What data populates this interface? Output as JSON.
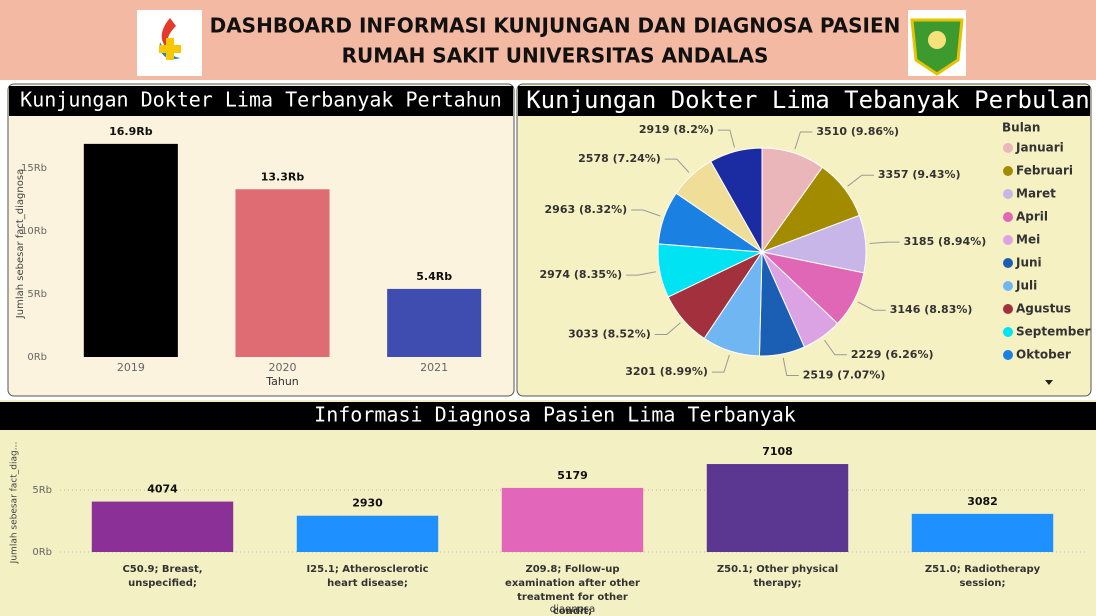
{
  "header": {
    "title_line1": "DASHBOARD INFORMASI KUNJUNGAN DAN DIAGNOSA PASIEN",
    "title_line2": "RUMAH SAKIT UNIVERSITAS ANDALAS"
  },
  "chart_data": [
    {
      "type": "bar",
      "title": "Kunjungan Dokter Lima Terbanyak Pertahun",
      "categories": [
        "2019",
        "2020",
        "2021"
      ],
      "values": [
        16900,
        13300,
        5400
      ],
      "value_labels": [
        "16.9Rb",
        "13.3Rb",
        "5.4Rb"
      ],
      "colors": [
        "#000000",
        "#df6b73",
        "#3f4db1"
      ],
      "ylim": [
        0,
        18000
      ],
      "yticks": [
        {
          "value": 0,
          "label": "0Rb"
        },
        {
          "value": 5000,
          "label": "5Rb"
        },
        {
          "value": 10000,
          "label": "10Rb"
        },
        {
          "value": 15000,
          "label": "15Rb"
        }
      ],
      "xlabel": "Tahun",
      "ylabel": "Jumlah sebesar fact_diagnosa",
      "grid": false
    },
    {
      "type": "pie",
      "title": "Kunjungan Dokter Lima Tebanyak Perbulan",
      "legend_title": "Bulan",
      "categories": [
        "Januari",
        "Februari",
        "Maret",
        "April",
        "Mei",
        "Juni",
        "Juli",
        "Agustus",
        "September",
        "Oktober",
        null,
        null
      ],
      "values": [
        3510,
        3357,
        3185,
        3146,
        2229,
        2519,
        3201,
        3033,
        2974,
        2963,
        2578,
        2919
      ],
      "value_labels": [
        "3510 (9.86%)",
        "3357 (9.43%)",
        "3185 (8.94%)",
        "3146 (8.83%)",
        "2229 (6.26%)",
        "2519 (7.07%)",
        "3201 (8.99%)",
        "3033 (8.52%)",
        "2974 (8.35%)",
        "2963 (8.32%)",
        "2578 (7.24%)",
        "2919 (8.2%)"
      ],
      "colors": [
        "#ebb6ba",
        "#a38b00",
        "#c9b6e8",
        "#e066b6",
        "#dba3e3",
        "#1b5fb5",
        "#6fb6f2",
        "#a2303d",
        "#00e3f2",
        "#1a80e2",
        "#f0dd98",
        "#1b2ca3"
      ],
      "legend": "right"
    },
    {
      "type": "bar",
      "title": "Informasi Diagnosa Pasien Lima Terbanyak",
      "categories": [
        "C50.9; Breast, unspecified;",
        "I25.1; Atherosclerotic heart disease;",
        "Z09.8; Follow-up examination after other treatment for other condit;",
        "Z50.1; Other physical therapy;",
        "Z51.0; Radiotherapy session;"
      ],
      "values": [
        4074,
        2930,
        5179,
        7108,
        3082
      ],
      "colors": [
        "#8a3096",
        "#1e90ff",
        "#e266ba",
        "#5b3791",
        "#1e90ff"
      ],
      "ylim": [
        0,
        8000
      ],
      "yticks": [
        {
          "value": 0,
          "label": "0Rb"
        },
        {
          "value": 5000,
          "label": "5Rb"
        }
      ],
      "xlabel": "diagnosa",
      "ylabel": "Jumlah sebesar fact_diag...",
      "grid": true
    }
  ]
}
